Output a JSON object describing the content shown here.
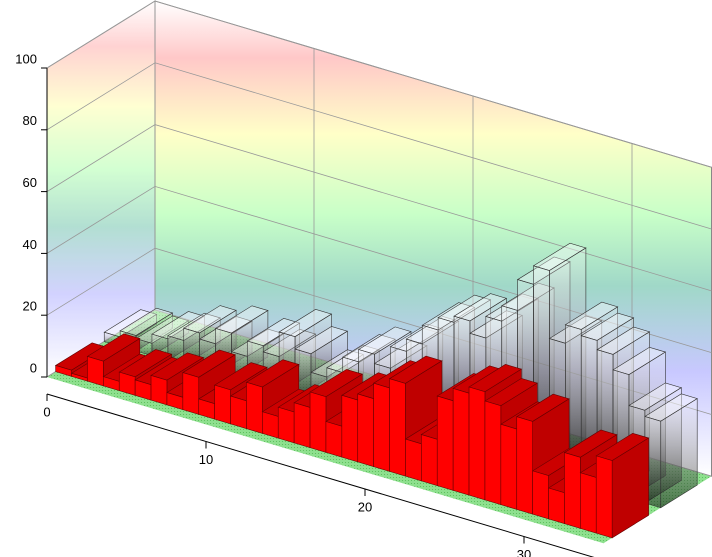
{
  "chart_data": {
    "type": "bar3d",
    "x": [
      0,
      1,
      2,
      3,
      4,
      5,
      6,
      7,
      8,
      9,
      10,
      11,
      12,
      13,
      14,
      15,
      16,
      17,
      18,
      19,
      20,
      21,
      22,
      23,
      24,
      25,
      26,
      27,
      28,
      29,
      30,
      31,
      32,
      33,
      34
    ],
    "series": [
      {
        "color": "#ff0000",
        "values": [
          2,
          1,
          8,
          3,
          6,
          5,
          8,
          4,
          12,
          5,
          11,
          9,
          15,
          7,
          10,
          13,
          18,
          10,
          20,
          22,
          27,
          30,
          12,
          15,
          29,
          33,
          35,
          32,
          26,
          30,
          14,
          10,
          23,
          18,
          25
        ]
      },
      {
        "color": "#ffffff",
        "values": [
          3,
          5,
          4,
          7,
          8,
          12,
          10,
          15,
          9,
          14,
          12,
          20,
          16,
          10,
          13,
          18,
          22,
          19,
          26,
          30,
          36,
          40,
          42,
          38,
          45,
          50,
          60,
          66,
          44,
          50,
          48,
          45,
          40,
          30,
          28
        ]
      }
    ],
    "xlim": [
      0,
      35
    ],
    "ylim": [
      0,
      100
    ],
    "xticks": [
      0,
      10,
      20,
      30
    ],
    "yticks": [
      0,
      20,
      40,
      60,
      80,
      100
    ],
    "grid": true
  }
}
